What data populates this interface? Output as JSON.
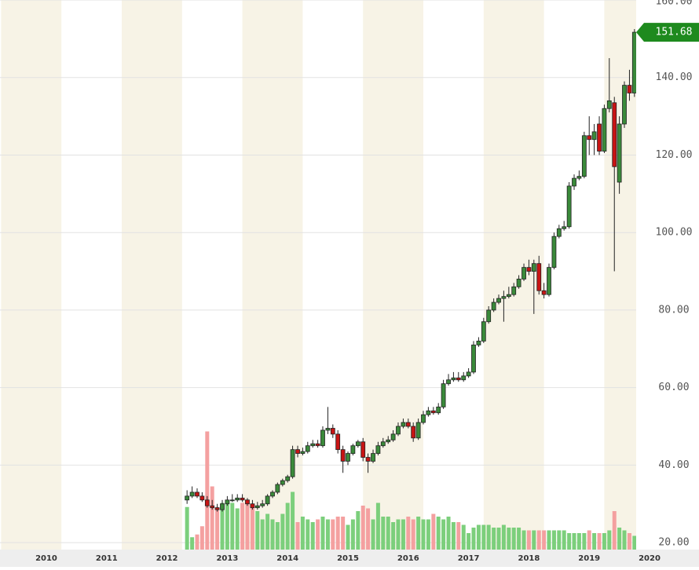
{
  "chart_data": {
    "type": "candlestick",
    "x": [
      2012.333,
      2012.417,
      2012.5,
      2012.583,
      2012.667,
      2012.75,
      2012.833,
      2012.917,
      2013.0,
      2013.083,
      2013.167,
      2013.25,
      2013.333,
      2013.417,
      2013.5,
      2013.583,
      2013.667,
      2013.75,
      2013.833,
      2013.917,
      2014.0,
      2014.083,
      2014.167,
      2014.25,
      2014.333,
      2014.417,
      2014.5,
      2014.583,
      2014.667,
      2014.75,
      2014.833,
      2014.917,
      2015.0,
      2015.083,
      2015.167,
      2015.25,
      2015.333,
      2015.417,
      2015.5,
      2015.583,
      2015.667,
      2015.75,
      2015.833,
      2015.917,
      2016.0,
      2016.083,
      2016.167,
      2016.25,
      2016.333,
      2016.417,
      2016.5,
      2016.583,
      2016.667,
      2016.75,
      2016.833,
      2016.917,
      2017.0,
      2017.083,
      2017.167,
      2017.25,
      2017.333,
      2017.417,
      2017.5,
      2017.583,
      2017.667,
      2017.75,
      2017.833,
      2017.917,
      2018.0,
      2018.083,
      2018.167,
      2018.25,
      2018.333,
      2018.417,
      2018.5,
      2018.583,
      2018.667,
      2018.75,
      2018.833,
      2018.917,
      2019.0,
      2019.083,
      2019.167,
      2019.25,
      2019.333,
      2019.417,
      2019.5,
      2019.583,
      2019.667,
      2019.75
    ],
    "open": [
      31,
      32,
      33,
      32,
      31,
      29.5,
      29,
      28.5,
      30,
      31,
      31,
      31.5,
      31,
      30,
      29,
      29.5,
      30,
      32,
      33,
      35,
      36,
      37,
      44,
      43,
      43.5,
      45,
      45.5,
      45,
      49,
      49.5,
      48,
      44,
      41,
      43,
      45,
      46,
      42,
      41,
      43,
      45,
      46,
      46.5,
      48,
      50,
      51,
      50,
      47,
      51,
      53,
      54,
      53.5,
      55,
      61,
      62,
      62.5,
      62,
      63,
      64,
      71,
      72,
      77,
      80,
      82,
      83,
      83.5,
      84,
      86,
      88,
      91,
      90,
      92,
      85,
      84,
      91,
      99,
      101,
      101.5,
      112,
      114,
      114.5,
      125,
      124,
      128,
      121,
      132,
      133.5,
      113,
      128,
      138,
      136
    ],
    "high": [
      33.5,
      34.5,
      34,
      33,
      32,
      31,
      30,
      31,
      32,
      32.5,
      32.5,
      32.5,
      31.5,
      31,
      30.5,
      31,
      32.5,
      33.5,
      35.5,
      36.5,
      37.5,
      45,
      45,
      44.5,
      46,
      46.5,
      46.5,
      50,
      55,
      50.5,
      49,
      45,
      43.5,
      45.5,
      46.5,
      47,
      43,
      44,
      46,
      47,
      47.5,
      49,
      51,
      52,
      52,
      51,
      52,
      54,
      55,
      55,
      56,
      62,
      63.5,
      64,
      64,
      64,
      65,
      72,
      73,
      78,
      81,
      83,
      84,
      85,
      86,
      87,
      89,
      92,
      93,
      93,
      94,
      87,
      92,
      100,
      102,
      103,
      113,
      115,
      116,
      126,
      130,
      128,
      130,
      133,
      145,
      135,
      130,
      139,
      142,
      152.5
    ],
    "low": [
      30,
      31.5,
      31.5,
      30.5,
      29,
      28.5,
      28,
      28,
      29.5,
      30.5,
      30.5,
      30.5,
      29.5,
      28.5,
      28.5,
      29,
      29.5,
      31.5,
      32.5,
      34.5,
      35.5,
      36.5,
      42,
      42.5,
      43,
      44.5,
      44.5,
      44.5,
      48,
      47,
      43,
      38,
      40,
      42.5,
      44.5,
      41,
      38,
      40.5,
      42.5,
      44.5,
      45.5,
      46,
      47.5,
      49.5,
      49.5,
      46,
      46.5,
      50.5,
      52.5,
      53,
      53,
      54.5,
      60.5,
      61.5,
      61.5,
      61.5,
      62.5,
      63.5,
      70.5,
      71.5,
      76.5,
      79.5,
      81.5,
      77,
      83,
      83.5,
      85.5,
      87.5,
      89,
      79,
      84,
      83,
      83.5,
      90.5,
      98.5,
      100.5,
      101,
      111,
      113.5,
      114,
      120,
      120,
      120,
      120.5,
      131,
      90,
      110,
      127,
      134,
      135
    ],
    "close": [
      32,
      33,
      32,
      31,
      29.5,
      29,
      28.5,
      30,
      31,
      31,
      31.5,
      31,
      30,
      29,
      29.5,
      30,
      32,
      33,
      35,
      36,
      37,
      44,
      43,
      43.5,
      45,
      45.5,
      45,
      49,
      49.5,
      48,
      44,
      41,
      43,
      45,
      46,
      42,
      41,
      43,
      45,
      46,
      46.5,
      48,
      50,
      51,
      50,
      47,
      51,
      53,
      54,
      53.5,
      55,
      61,
      62,
      62.5,
      62,
      63,
      64,
      71,
      72,
      77,
      80,
      82,
      83,
      83.5,
      84,
      86,
      88,
      91,
      90,
      92,
      85,
      84,
      91,
      99,
      101,
      101.5,
      112,
      114,
      114.5,
      125,
      124,
      126,
      121,
      132,
      134,
      117,
      128,
      138,
      136,
      151.68
    ],
    "volume": [
      31,
      9,
      11,
      17,
      86,
      46,
      31,
      34,
      34,
      34,
      30,
      34,
      34,
      32,
      28,
      22,
      26,
      22,
      20,
      26,
      34,
      42,
      20,
      24,
      22,
      20,
      22,
      24,
      22,
      22,
      24,
      24,
      18,
      22,
      28,
      32,
      30,
      22,
      34,
      24,
      24,
      20,
      22,
      22,
      24,
      22,
      24,
      22,
      22,
      26,
      24,
      22,
      24,
      20,
      20,
      18,
      12,
      16,
      18,
      18,
      18,
      16,
      16,
      18,
      16,
      16,
      16,
      14,
      14,
      14,
      14,
      14,
      14,
      14,
      14,
      14,
      12,
      12,
      12,
      12,
      14,
      12,
      12,
      12,
      14,
      28,
      16,
      14,
      12,
      10
    ],
    "up_color": "#3a8a3a",
    "down_color": "#c81414",
    "volume_up_color": "#7ccf7c",
    "volume_down_color": "#f4a0a0",
    "last_color": "#1e8a1e",
    "xlim": [
      2009.232,
      2020.82
    ],
    "xticks": [
      2010,
      2011,
      2012,
      2013,
      2014,
      2015,
      2016,
      2017,
      2018,
      2019,
      2020
    ],
    "ylim": [
      18.2,
      160
    ],
    "yticks": [
      {
        "value": 20,
        "label": "20.00"
      },
      {
        "value": 40,
        "label": "40.00"
      },
      {
        "value": 60,
        "label": "60.00"
      },
      {
        "value": 80,
        "label": "80.00"
      },
      {
        "value": 100,
        "label": "100.00"
      },
      {
        "value": 120,
        "label": "120.00"
      },
      {
        "value": 140,
        "label": "140.00"
      },
      {
        "value": 160,
        "label": "160.00"
      }
    ],
    "y2lim": [
      0,
      400
    ],
    "grid": true
  }
}
